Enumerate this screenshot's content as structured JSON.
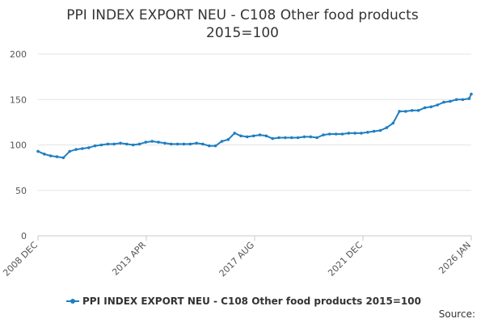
{
  "chart_data": {
    "type": "line",
    "title": "PPI INDEX EXPORT NEU - C108 Other food products 2015=100",
    "xlabel": "",
    "ylabel": "",
    "x_tick_labels": [
      "2008 DEC",
      "2013 APR",
      "2017 AUG",
      "2021 DEC",
      "2026 JAN"
    ],
    "y_tick_labels": [
      "0",
      "50",
      "100",
      "150",
      "200"
    ],
    "ylim": [
      0,
      200
    ],
    "xlim": [
      "2008-12",
      "2026-01"
    ],
    "grid": true,
    "legend_position": "bottom",
    "source_label": "Source:",
    "series": [
      {
        "name": "PPI INDEX EXPORT NEU - C108 Other food products 2015=100",
        "color": "#1f7fc1",
        "x": [
          "2008-12",
          "2009-03",
          "2009-06",
          "2009-09",
          "2009-12",
          "2010-03",
          "2010-06",
          "2010-09",
          "2010-12",
          "2011-03",
          "2011-06",
          "2011-09",
          "2011-12",
          "2012-03",
          "2012-06",
          "2012-09",
          "2012-12",
          "2013-03",
          "2013-06",
          "2013-09",
          "2013-12",
          "2014-03",
          "2014-06",
          "2014-09",
          "2014-12",
          "2015-03",
          "2015-06",
          "2015-09",
          "2015-12",
          "2016-03",
          "2016-06",
          "2016-09",
          "2016-12",
          "2017-03",
          "2017-06",
          "2017-09",
          "2017-12",
          "2018-03",
          "2018-06",
          "2018-09",
          "2018-12",
          "2019-03",
          "2019-06",
          "2019-09",
          "2019-12",
          "2020-03",
          "2020-06",
          "2020-09",
          "2020-12",
          "2021-03",
          "2021-06",
          "2021-09",
          "2021-12",
          "2022-03",
          "2022-06",
          "2022-09",
          "2022-12",
          "2023-03",
          "2023-06",
          "2023-09",
          "2023-12",
          "2024-03",
          "2024-06",
          "2024-09",
          "2024-12",
          "2025-03",
          "2025-06",
          "2025-09",
          "2025-12",
          "2026-01"
        ],
        "values": [
          93,
          90,
          88,
          87,
          86,
          93,
          95,
          96,
          97,
          99,
          100,
          101,
          101,
          102,
          101,
          100,
          101,
          103,
          104,
          103,
          102,
          101,
          101,
          101,
          101,
          102,
          101,
          99,
          99,
          104,
          106,
          113,
          110,
          109,
          110,
          111,
          110,
          107,
          108,
          108,
          108,
          108,
          109,
          109,
          108,
          111,
          112,
          112,
          112,
          113,
          113,
          113,
          114,
          115,
          116,
          119,
          124,
          137,
          137,
          138,
          138,
          141,
          142,
          144,
          147,
          148,
          150,
          150,
          151,
          156
        ]
      }
    ]
  }
}
